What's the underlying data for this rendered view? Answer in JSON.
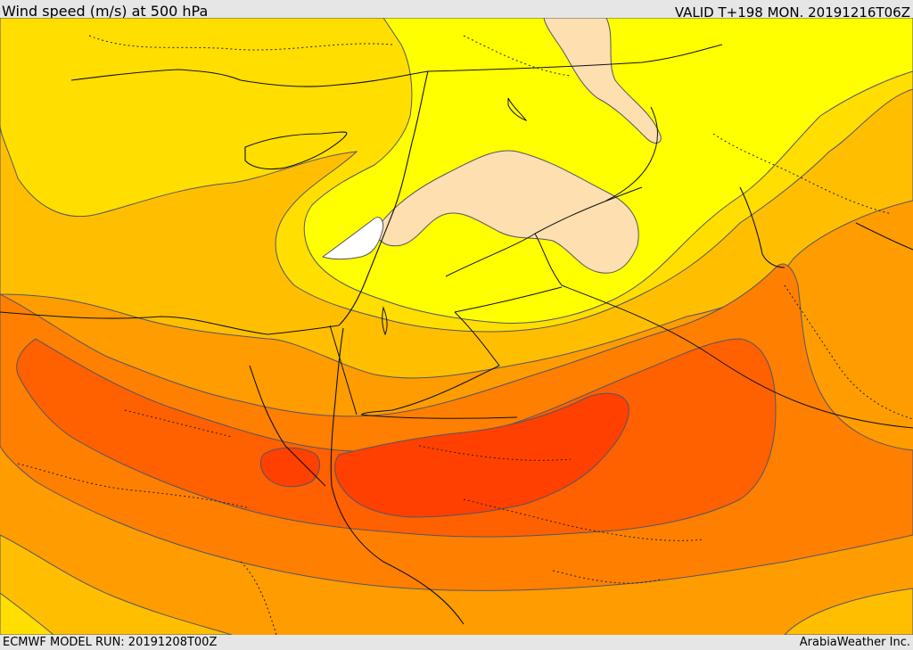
{
  "header": {
    "title": "Wind speed (m/s) at 500 hPa",
    "valid_time": "VALID T+198 MON. 20191216T06Z"
  },
  "footer": {
    "model_run": "ECMWF MODEL RUN: 20191208T00Z",
    "provider": "ArabiaWeather Inc."
  },
  "map": {
    "variable": "wind speed",
    "level": "500 hPa",
    "palette": {
      "weakest": "#ffffff",
      "pale": "#fddfb0",
      "yellow": "#ffff00",
      "yellow_orange": "#ffde00",
      "orange_1": "#ffbf00",
      "orange_2": "#ff9c00",
      "orange_3": "#ff7f00",
      "orange_4": "#ff6000",
      "strongest": "#ff4000"
    },
    "contour_color": "#556",
    "border_color": "#111"
  }
}
